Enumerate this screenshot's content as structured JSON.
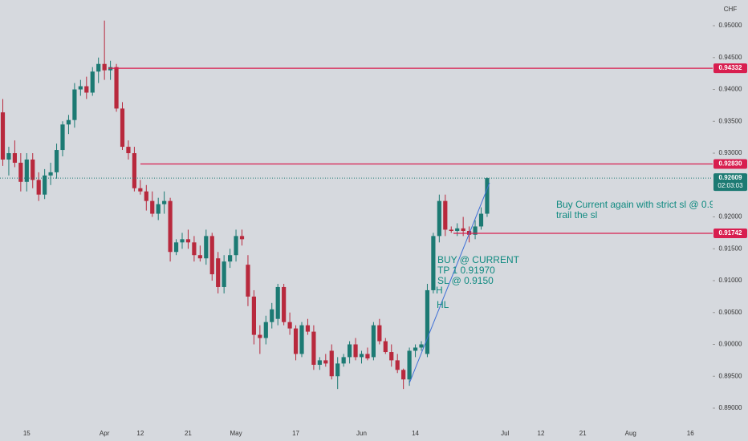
{
  "chart_data": {
    "type": "candlestick",
    "currency": "CHF",
    "up_color": "#1c7a73",
    "down_color": "#b8293d",
    "ylim": [
      0.8861,
      0.95403
    ],
    "yticks": [
      {
        "value": 0.89,
        "label": "0.89000"
      },
      {
        "value": 0.895,
        "label": "0.89500"
      },
      {
        "value": 0.9,
        "label": "0.90000"
      },
      {
        "value": 0.905,
        "label": "0.90500"
      },
      {
        "value": 0.91,
        "label": "0.91000"
      },
      {
        "value": 0.915,
        "label": "0.91500"
      },
      {
        "value": 0.92,
        "label": "0.92000"
      },
      {
        "value": 0.93,
        "label": "0.93000"
      },
      {
        "value": 0.935,
        "label": "0.93500"
      },
      {
        "value": 0.94,
        "label": "0.94000"
      },
      {
        "value": 0.945,
        "label": "0.94500"
      },
      {
        "value": 0.95,
        "label": "0.95000"
      }
    ],
    "categories": [
      null,
      null,
      null,
      null,
      "15",
      null,
      null,
      null,
      null,
      null,
      null,
      null,
      null,
      null,
      null,
      null,
      null,
      "Apr",
      null,
      null,
      null,
      null,
      null,
      "12",
      null,
      null,
      null,
      null,
      null,
      null,
      null,
      "21",
      null,
      null,
      null,
      null,
      null,
      null,
      null,
      "May",
      null,
      null,
      null,
      null,
      null,
      null,
      null,
      null,
      null,
      "17",
      null,
      null,
      null,
      null,
      null,
      null,
      null,
      null,
      null,
      null,
      "Jun",
      null,
      null,
      null,
      null,
      null,
      null,
      null,
      null,
      "14",
      null,
      null,
      null,
      null,
      null,
      null,
      null,
      null,
      null,
      null,
      null,
      null,
      null,
      null,
      "Jul",
      null,
      null,
      null,
      null,
      null,
      "12",
      null,
      null,
      null,
      null,
      null,
      null,
      "21",
      null,
      null,
      null,
      null,
      null,
      null,
      null,
      "Aug",
      null,
      null,
      null,
      null,
      null,
      null,
      null,
      null,
      null,
      "16",
      null,
      null,
      null,
      null
    ],
    "open": [
      0.9364,
      0.929,
      0.93,
      0.9285,
      0.9255,
      0.929,
      0.9258,
      0.9235,
      0.9265,
      0.927,
      0.9305,
      0.9345,
      0.9352,
      0.94,
      0.9405,
      0.9395,
      0.9428,
      0.944,
      0.943,
      0.9435,
      0.937,
      0.931,
      0.93,
      0.9245,
      0.924,
      0.9225,
      0.9205,
      0.922,
      0.9225,
      0.9145,
      0.916,
      0.9165,
      0.916,
      0.914,
      0.9135,
      0.917,
      0.9135,
      0.909,
      0.913,
      0.914,
      0.917,
      0.9125,
      0.9075,
      0.9015,
      0.901,
      0.9035,
      0.904,
      0.909,
      0.9035,
      0.9025,
      0.8985,
      0.903,
      0.902,
      0.8968,
      0.8975,
      0.899,
      0.895,
      0.897,
      0.898,
      0.9,
      0.898,
      0.8985,
      0.898,
      0.903,
      0.9005,
      0.8988,
      0.8975,
      0.896,
      0.8945,
      0.899,
      0.8995,
      0.8985,
      0.9085,
      0.917,
      0.9225,
      0.918,
      0.9178,
      0.9182,
      0.9178,
      0.9172,
      0.9185,
      0.9205,
      null,
      null,
      null,
      null,
      null,
      null,
      null,
      null,
      null,
      null,
      null,
      null,
      null,
      null,
      null,
      null,
      null,
      null,
      null,
      null,
      null,
      null,
      null,
      null,
      null,
      null,
      null,
      null,
      null,
      null,
      null,
      null,
      null,
      null,
      null,
      null,
      null,
      null
    ],
    "high": [
      0.9385,
      0.931,
      0.932,
      0.93,
      0.93,
      0.93,
      0.927,
      0.9275,
      0.9285,
      0.9315,
      0.935,
      0.936,
      0.941,
      0.9415,
      0.942,
      0.9435,
      0.945,
      0.9508,
      0.9445,
      0.944,
      0.938,
      0.932,
      0.931,
      0.9258,
      0.925,
      0.924,
      0.923,
      0.924,
      0.923,
      0.9165,
      0.9175,
      0.918,
      0.917,
      0.9155,
      0.918,
      0.9175,
      0.9145,
      0.914,
      0.915,
      0.918,
      0.918,
      0.914,
      0.9085,
      0.903,
      0.9045,
      0.9065,
      0.9095,
      0.9095,
      0.905,
      0.903,
      0.9035,
      0.904,
      0.903,
      0.898,
      0.8985,
      0.9,
      0.898,
      0.8985,
      0.9005,
      0.901,
      0.899,
      0.8995,
      0.9035,
      0.904,
      0.901,
      0.9,
      0.8985,
      0.8962,
      0.8995,
      0.9,
      0.9005,
      0.9095,
      0.9175,
      0.9235,
      0.9235,
      0.9185,
      0.919,
      0.92,
      0.9185,
      0.9195,
      0.9215,
      0.9262,
      null,
      null,
      null,
      null,
      null,
      null,
      null,
      null,
      null,
      null,
      null,
      null,
      null,
      null,
      null,
      null,
      null,
      null,
      null,
      null,
      null,
      null,
      null,
      null,
      null,
      null,
      null,
      null,
      null,
      null,
      null,
      null,
      null,
      null,
      null,
      null,
      null,
      null
    ],
    "low": [
      0.928,
      0.9265,
      0.9278,
      0.924,
      0.924,
      0.9245,
      0.9225,
      0.9228,
      0.925,
      0.926,
      0.9295,
      0.933,
      0.934,
      0.939,
      0.9385,
      0.939,
      0.941,
      0.9415,
      0.9415,
      0.9365,
      0.9305,
      0.929,
      0.924,
      0.9235,
      0.921,
      0.92,
      0.9195,
      0.9205,
      0.913,
      0.914,
      0.915,
      0.915,
      0.913,
      0.913,
      0.9125,
      0.91,
      0.908,
      0.908,
      0.912,
      0.913,
      0.9155,
      0.906,
      0.9,
      0.8985,
      0.9,
      0.9025,
      0.903,
      0.903,
      0.9015,
      0.8975,
      0.898,
      0.9015,
      0.896,
      0.896,
      0.8965,
      0.8945,
      0.893,
      0.8965,
      0.897,
      0.8975,
      0.897,
      0.8975,
      0.8975,
      0.9,
      0.8985,
      0.8965,
      0.8955,
      0.893,
      0.8935,
      0.898,
      0.899,
      0.898,
      0.908,
      0.916,
      0.917,
      0.9175,
      0.917,
      0.917,
      0.916,
      0.9165,
      0.918,
      0.92,
      null,
      null,
      null,
      null,
      null,
      null,
      null,
      null,
      null,
      null,
      null,
      null,
      null,
      null,
      null,
      null,
      null,
      null,
      null,
      null,
      null,
      null,
      null,
      null,
      null,
      null,
      null,
      null,
      null,
      null,
      null,
      null,
      null,
      null,
      null,
      null,
      null,
      null
    ],
    "close": [
      0.929,
      0.93,
      0.9285,
      0.9255,
      0.929,
      0.9258,
      0.9235,
      0.9265,
      0.927,
      0.9305,
      0.9345,
      0.9352,
      0.94,
      0.9405,
      0.9395,
      0.9428,
      0.944,
      0.943,
      0.9435,
      0.937,
      0.931,
      0.93,
      0.9245,
      0.924,
      0.9225,
      0.9205,
      0.922,
      0.9225,
      0.9145,
      0.916,
      0.9165,
      0.916,
      0.914,
      0.9135,
      0.917,
      0.911,
      0.909,
      0.913,
      0.914,
      0.917,
      0.9165,
      0.9075,
      0.9015,
      0.901,
      0.9035,
      0.9055,
      0.909,
      0.9035,
      0.9025,
      0.8985,
      0.903,
      0.902,
      0.8968,
      0.8975,
      0.897,
      0.895,
      0.897,
      0.898,
      0.9,
      0.898,
      0.8985,
      0.8978,
      0.903,
      0.9005,
      0.8988,
      0.8975,
      0.896,
      0.8945,
      0.899,
      0.8995,
      0.9,
      0.9085,
      0.917,
      0.9225,
      0.918,
      0.9178,
      0.9182,
      0.9178,
      0.9172,
      0.9185,
      0.9205,
      0.92609,
      null,
      null,
      null,
      null,
      null,
      null,
      null,
      null,
      null,
      null,
      null,
      null,
      null,
      null,
      null,
      null,
      null,
      null,
      null,
      null,
      null,
      null,
      null,
      null,
      null,
      null,
      null,
      null,
      null,
      null,
      null,
      null,
      null,
      null,
      null,
      null,
      null,
      null
    ],
    "hlines": [
      {
        "value": 0.94332,
        "label": "0.94332",
        "color": "#d81e4f"
      },
      {
        "value": 0.9283,
        "label": "0.92830",
        "color": "#d81e4f"
      },
      {
        "value": 0.91742,
        "label": "0.91742",
        "color": "#d81e4f"
      }
    ],
    "current_price": {
      "value": 0.92609,
      "label": "0.92609",
      "countdown": "02:03:03",
      "color": "#1c7a73"
    },
    "annotations": [
      "BUY @ CURRENT",
      "TP 1 0.91970",
      "SL @ 0.9150",
      "H",
      "HL",
      "Buy Current again with strict sl @ 0.9",
      "trail the sl"
    ],
    "annotation_color": "#0f8a80",
    "trendline_color": "#3d6fd6"
  }
}
